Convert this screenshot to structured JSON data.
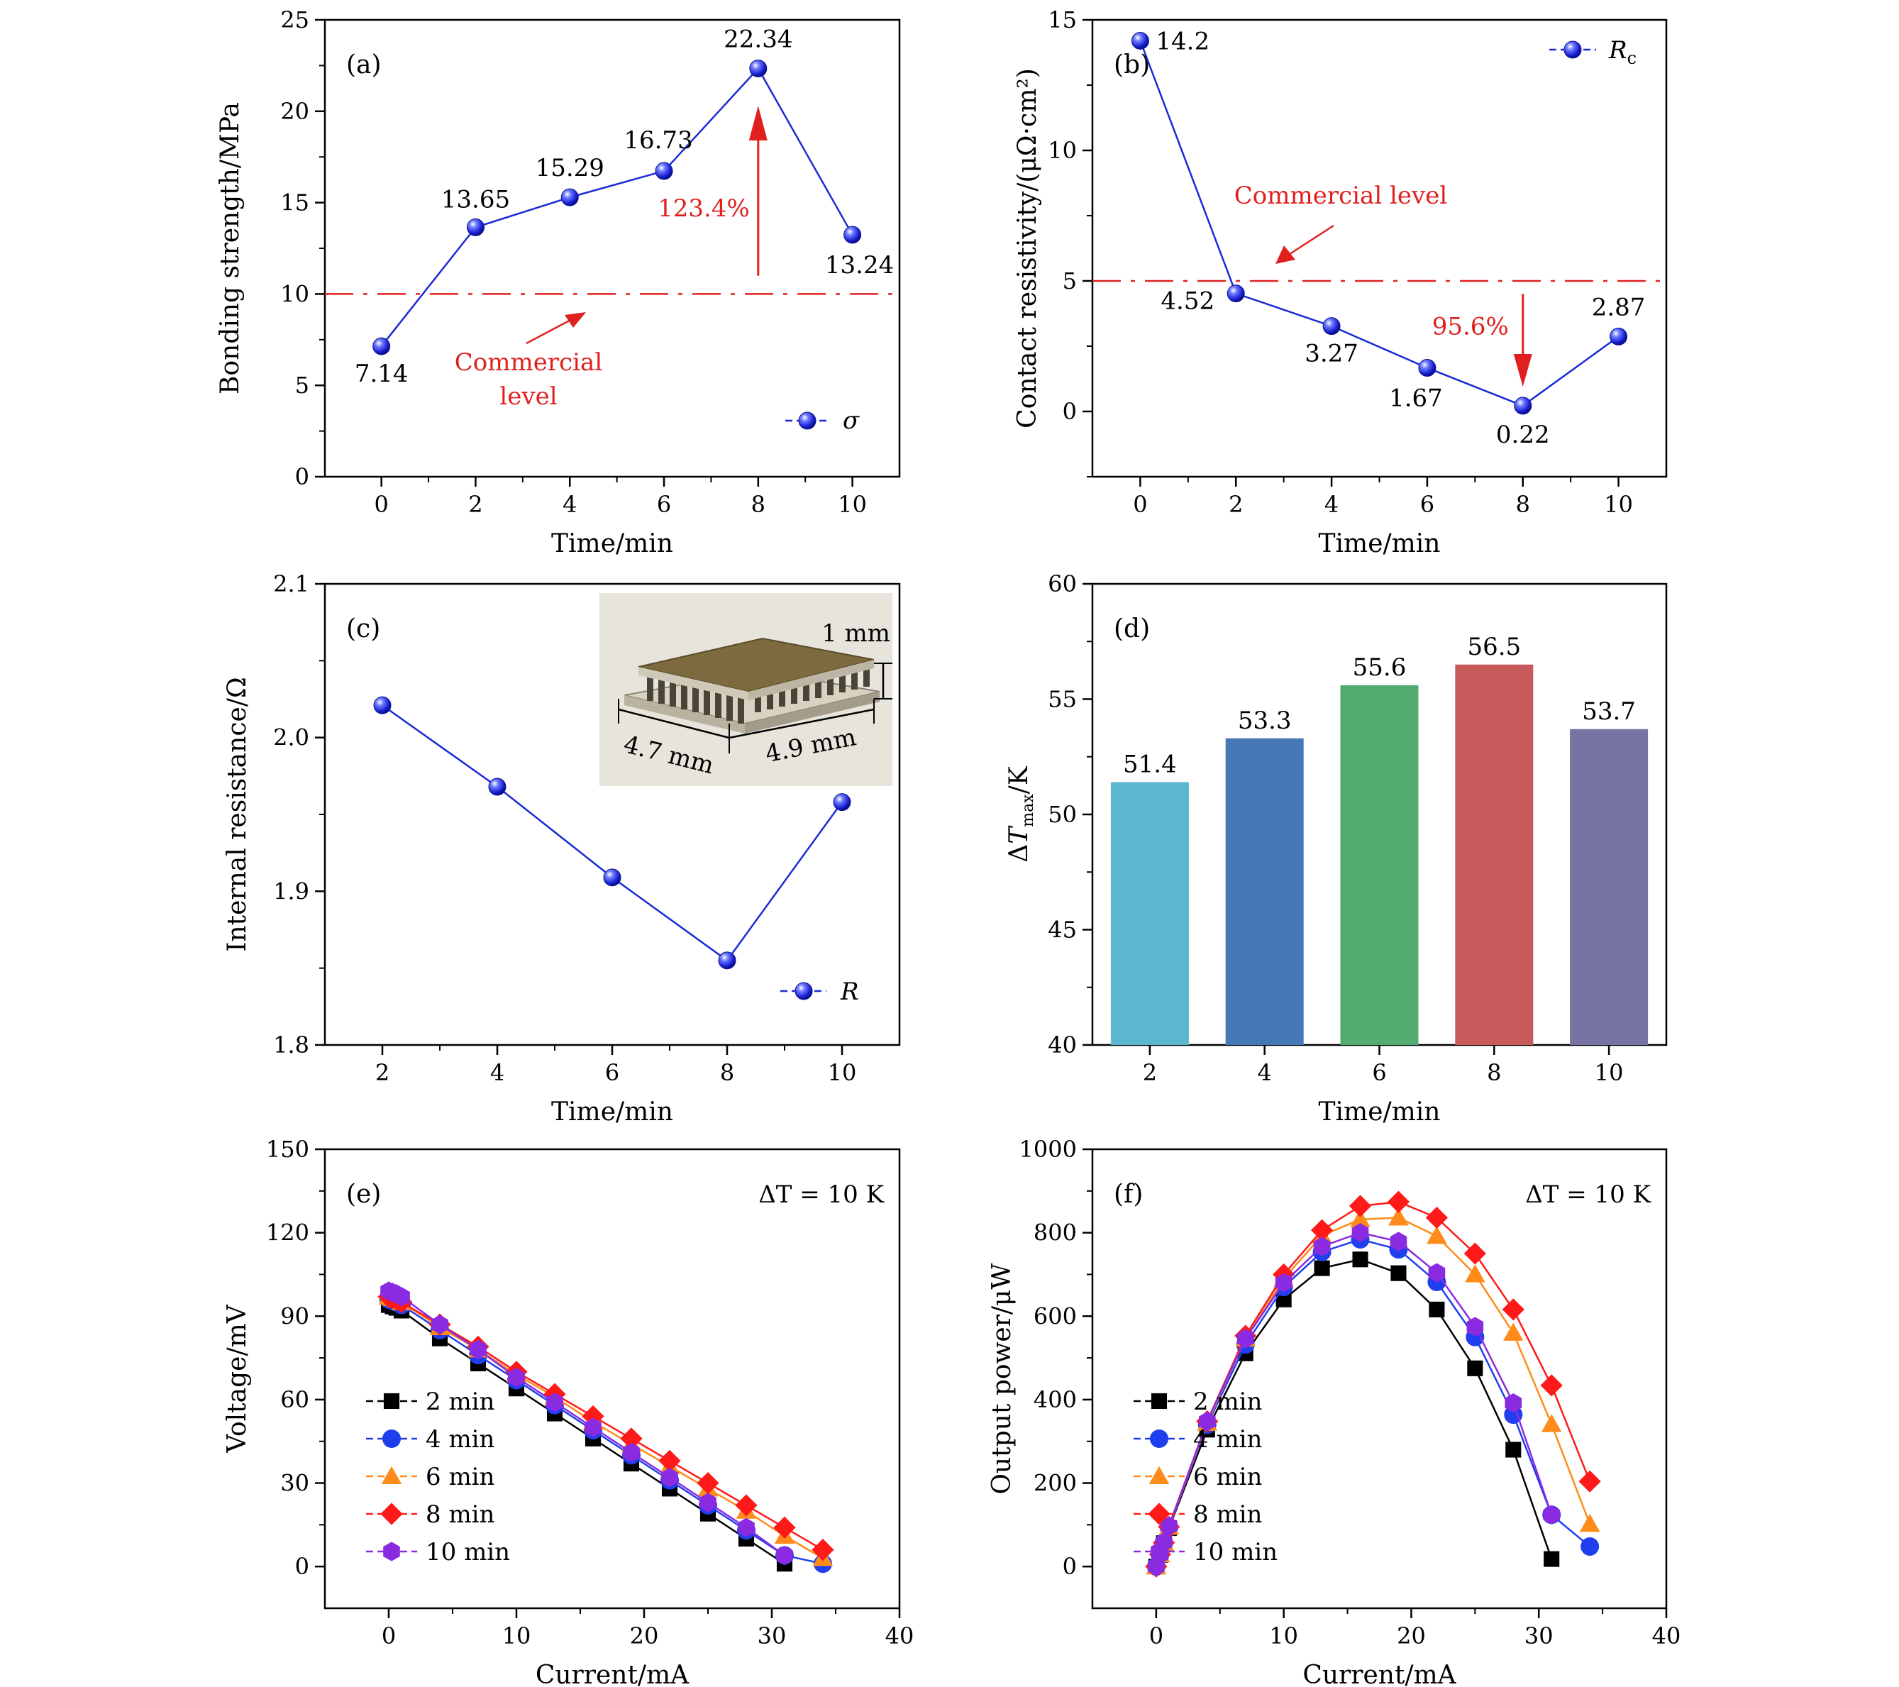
{
  "chart_data": [
    {
      "id": "a",
      "type": "line",
      "panel_label": "(a)",
      "xlabel": "Time/min",
      "ylabel": "Bonding strength/MPa",
      "xlim": [
        -1.2,
        11
      ],
      "ylim": [
        0,
        25
      ],
      "xticks": [
        0,
        2,
        4,
        6,
        8,
        10
      ],
      "yticks": [
        0,
        5,
        10,
        15,
        20,
        25
      ],
      "series": [
        {
          "name": "σ",
          "x": [
            0,
            2,
            4,
            6,
            8,
            10
          ],
          "y": [
            7.14,
            13.65,
            15.29,
            16.73,
            22.34,
            13.24
          ]
        }
      ],
      "data_labels": [
        "7.14",
        "13.65",
        "15.29",
        "16.73",
        "22.34",
        "13.24"
      ],
      "reference_line": {
        "y": 10,
        "label_line1": "Commercial",
        "label_line2": "level"
      },
      "change_annotation": "123.4%",
      "legend": "bottom-right"
    },
    {
      "id": "b",
      "type": "line",
      "panel_label": "(b)",
      "xlabel": "Time/min",
      "ylabel": "Contact resistivity/(μΩ·cm²)",
      "xlim": [
        -1,
        11
      ],
      "ylim": [
        -2.5,
        15
      ],
      "xticks": [
        0,
        2,
        4,
        6,
        8,
        10
      ],
      "yticks": [
        0,
        5,
        10,
        15
      ],
      "series": [
        {
          "name": "R",
          "name_sub": "c",
          "x": [
            0,
            2,
            4,
            6,
            8,
            10
          ],
          "y": [
            14.2,
            4.52,
            3.27,
            1.67,
            0.22,
            2.87
          ]
        }
      ],
      "data_labels": [
        "14.2",
        "4.52",
        "3.27",
        "1.67",
        "0.22",
        "2.87"
      ],
      "reference_line": {
        "y": 5,
        "label": "Commercial level"
      },
      "change_annotation": "95.6%",
      "legend": "top-right"
    },
    {
      "id": "c",
      "type": "line",
      "panel_label": "(c)",
      "xlabel": "Time/min",
      "ylabel": "Internal resistance/Ω",
      "xlim": [
        1,
        11
      ],
      "ylim": [
        1.8,
        2.1
      ],
      "xticks": [
        2,
        4,
        6,
        8,
        10
      ],
      "yticks": [
        "1.8",
        "1.9",
        "2.0",
        "2.1"
      ],
      "series": [
        {
          "name": "R",
          "x": [
            2,
            4,
            6,
            8,
            10
          ],
          "y": [
            2.021,
            1.968,
            1.909,
            1.855,
            1.958
          ]
        }
      ],
      "inset": {
        "height_label": "1 mm",
        "length_label": "4.7 mm",
        "width_label": "4.9 mm"
      },
      "legend": "bottom-right"
    },
    {
      "id": "d",
      "type": "bar",
      "panel_label": "(d)",
      "xlabel": "Time/min",
      "ylabel_main": "ΔT",
      "ylabel_sub": "max",
      "ylabel_unit": "/K",
      "categories": [
        "2",
        "4",
        "6",
        "8",
        "10"
      ],
      "values": [
        51.4,
        53.3,
        55.6,
        56.5,
        53.7
      ],
      "value_labels": [
        "51.4",
        "53.3",
        "55.6",
        "56.5",
        "53.7"
      ],
      "colors": [
        "#5bb7cf",
        "#4677b6",
        "#52ab6f",
        "#c95a5c",
        "#7774a3"
      ],
      "ylim": [
        40,
        60
      ],
      "yticks": [
        40,
        45,
        50,
        55,
        60
      ]
    },
    {
      "id": "e",
      "type": "line",
      "panel_label": "(e)",
      "annotation": "ΔT = 10 K",
      "xlabel": "Current/mA",
      "ylabel": "Voltage/mV",
      "xlim": [
        -5,
        40
      ],
      "ylim": [
        -15,
        150
      ],
      "xticks": [
        0,
        10,
        20,
        30,
        40
      ],
      "yticks": [
        0,
        30,
        60,
        90,
        120,
        150
      ],
      "series": [
        {
          "name": "2 min",
          "color": "#000000",
          "marker": "square",
          "x": [
            0,
            0.3,
            0.6,
            1,
            4,
            7,
            10,
            13,
            16,
            19,
            22,
            25,
            28,
            31
          ],
          "y": [
            94,
            93.5,
            93,
            92,
            82,
            73,
            64,
            55,
            46,
            37,
            28,
            19,
            10,
            1
          ]
        },
        {
          "name": "4 min",
          "color": "#1f3fef",
          "marker": "circle",
          "x": [
            0,
            0.3,
            0.6,
            1,
            4,
            7,
            10,
            13,
            16,
            19,
            22,
            25,
            28,
            31,
            34
          ],
          "y": [
            96,
            95.5,
            95,
            94,
            85,
            76,
            67,
            58,
            49,
            40,
            31,
            22,
            13,
            4,
            1
          ]
        },
        {
          "name": "6 min",
          "color": "#ff8c1a",
          "marker": "triangle",
          "x": [
            0,
            0.3,
            0.6,
            1,
            4,
            7,
            10,
            13,
            16,
            19,
            22,
            25,
            28,
            31,
            34
          ],
          "y": [
            97,
            96.5,
            96,
            95,
            86,
            78,
            69,
            61,
            52,
            44,
            36,
            28,
            20,
            11,
            3
          ]
        },
        {
          "name": "8 min",
          "color": "#ff1a1a",
          "marker": "diamond",
          "x": [
            0,
            0.3,
            0.6,
            1,
            4,
            7,
            10,
            13,
            16,
            19,
            22,
            25,
            28,
            31,
            34
          ],
          "y": [
            97,
            96.5,
            96,
            95,
            87,
            79,
            70,
            62,
            54,
            46,
            38,
            30,
            22,
            14,
            6
          ]
        },
        {
          "name": "10 min",
          "color": "#8a2be2",
          "marker": "hexagon",
          "x": [
            0,
            0.3,
            0.6,
            1,
            4,
            7,
            10,
            13,
            16,
            19,
            22,
            25,
            28,
            31
          ],
          "y": [
            99,
            98.5,
            98,
            97,
            87,
            78,
            68,
            59,
            50,
            41,
            32,
            23,
            14,
            4
          ]
        }
      ],
      "legend": "bottom-left"
    },
    {
      "id": "f",
      "type": "line",
      "panel_label": "(f)",
      "annotation": "ΔT = 10 K",
      "xlabel": "Current/mA",
      "ylabel": "Output power/μW",
      "xlim": [
        -5,
        40
      ],
      "ylim": [
        -100,
        1000
      ],
      "xticks": [
        0,
        10,
        20,
        30,
        40
      ],
      "yticks": [
        0,
        200,
        400,
        600,
        800,
        1000
      ],
      "series": [
        {
          "name": "2 min",
          "color": "#000000",
          "marker": "square",
          "x": [
            0,
            0.3,
            0.6,
            1,
            4,
            7,
            10,
            13,
            16,
            19,
            22,
            25,
            28,
            31
          ],
          "y": [
            0,
            28,
            56,
            92,
            328,
            511,
            640,
            715,
            736,
            703,
            616,
            475,
            280,
            18
          ]
        },
        {
          "name": "4 min",
          "color": "#1f3fef",
          "marker": "circle",
          "x": [
            0,
            0.3,
            0.6,
            1,
            4,
            7,
            10,
            13,
            16,
            19,
            22,
            25,
            28,
            31,
            34
          ],
          "y": [
            0,
            28,
            57,
            94,
            340,
            532,
            670,
            754,
            784,
            760,
            682,
            550,
            364,
            124,
            48
          ]
        },
        {
          "name": "6 min",
          "color": "#ff8c1a",
          "marker": "triangle",
          "x": [
            0,
            0.3,
            0.6,
            1,
            4,
            7,
            10,
            13,
            16,
            19,
            22,
            25,
            28,
            31,
            34
          ],
          "y": [
            0,
            29,
            57,
            95,
            344,
            546,
            690,
            793,
            832,
            836,
            792,
            700,
            560,
            341,
            102
          ]
        },
        {
          "name": "8 min",
          "color": "#ff1a1a",
          "marker": "diamond",
          "x": [
            0,
            0.3,
            0.6,
            1,
            4,
            7,
            10,
            13,
            16,
            19,
            22,
            25,
            28,
            31,
            34
          ],
          "y": [
            0,
            29,
            57,
            95,
            348,
            553,
            700,
            806,
            864,
            874,
            836,
            750,
            616,
            434,
            204
          ]
        },
        {
          "name": "10 min",
          "color": "#8a2be2",
          "marker": "hexagon",
          "x": [
            0,
            0.3,
            0.6,
            1,
            4,
            7,
            10,
            13,
            16,
            19,
            22,
            25,
            28,
            31
          ],
          "y": [
            0,
            29,
            58,
            97,
            348,
            546,
            680,
            767,
            800,
            779,
            704,
            575,
            392,
            124
          ]
        }
      ],
      "legend": "bottom-left"
    }
  ]
}
